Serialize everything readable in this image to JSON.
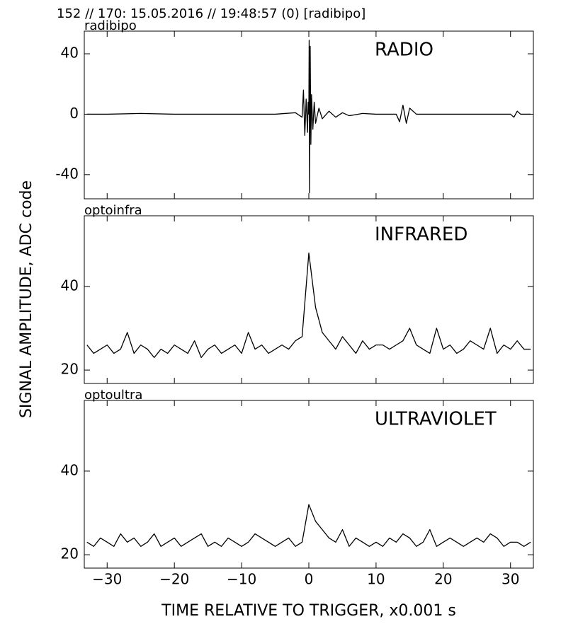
{
  "title": "152 // 170:   15.05.2016 // 19:48:57 (0)  [radibipo]",
  "ylabel": "SIGNAL AMPLITUDE,  ADC code",
  "xlabel": "TIME RELATIVE TO TRIGGER,   x0.001 s",
  "chart_data": [
    {
      "type": "line",
      "label": "radibipo",
      "annotation": "RADIO",
      "color": "#000000",
      "x": [
        -33,
        -30,
        -25,
        -20,
        -15,
        -10,
        -5,
        -2,
        -1,
        -0.8,
        -0.6,
        -0.4,
        -0.2,
        -0.1,
        0,
        0.05,
        0.1,
        0.2,
        0.3,
        0.4,
        0.6,
        0.8,
        1,
        1.5,
        2,
        3,
        4,
        5,
        6,
        8,
        10,
        12,
        13,
        13.5,
        14,
        14.5,
        15,
        16,
        18,
        20,
        25,
        30,
        30.5,
        31,
        31.5,
        33
      ],
      "values": [
        0,
        0,
        0.5,
        0,
        0,
        0,
        0,
        1,
        -2,
        16,
        -14,
        10,
        -12,
        8,
        0,
        49,
        -52,
        45,
        -20,
        13,
        -10,
        8,
        -6,
        4,
        -3,
        2,
        -2,
        1,
        -1,
        0.5,
        0,
        0,
        0,
        -5,
        6,
        -6,
        4,
        0,
        0,
        0,
        0,
        0,
        -2,
        2,
        0,
        0
      ],
      "xlim": [
        -33.4,
        33.4
      ],
      "xticks": [
        {
          "value": -30,
          "label": "−30"
        },
        {
          "value": -20,
          "label": "−20"
        },
        {
          "value": -10,
          "label": "−10"
        },
        0,
        10,
        20,
        30
      ],
      "ylim": [
        -56,
        55
      ],
      "yticks": [
        -40,
        0,
        40
      ]
    },
    {
      "type": "line",
      "label": "optoinfra",
      "annotation": "INFRARED",
      "color": "#000000",
      "x": [
        -33,
        -32,
        -31,
        -30,
        -29,
        -28,
        -27,
        -26,
        -25,
        -24,
        -23,
        -22,
        -21,
        -20,
        -19,
        -18,
        -17,
        -16,
        -15,
        -14,
        -13,
        -12,
        -11,
        -10,
        -9,
        -8,
        -7,
        -6,
        -5,
        -4,
        -3,
        -2,
        -1,
        0,
        1,
        2,
        3,
        4,
        5,
        6,
        7,
        8,
        9,
        10,
        11,
        12,
        13,
        14,
        15,
        16,
        17,
        18,
        19,
        20,
        21,
        22,
        23,
        24,
        25,
        26,
        27,
        28,
        29,
        30,
        31,
        32,
        33
      ],
      "values": [
        26,
        24,
        25,
        26,
        24,
        25,
        29,
        24,
        26,
        25,
        23,
        25,
        24,
        26,
        25,
        24,
        27,
        23,
        25,
        26,
        24,
        25,
        26,
        24,
        29,
        25,
        26,
        24,
        25,
        26,
        25,
        27,
        28,
        48,
        35,
        29,
        27,
        25,
        28,
        26,
        24,
        27,
        25,
        26,
        26,
        25,
        26,
        27,
        30,
        26,
        25,
        24,
        30,
        25,
        26,
        24,
        25,
        27,
        26,
        25,
        30,
        24,
        26,
        25,
        27,
        25,
        25
      ],
      "xlim": [
        -33.4,
        33.4
      ],
      "xticks": [
        {
          "value": -30,
          "label": "−30"
        },
        {
          "value": -20,
          "label": "−20"
        },
        {
          "value": -10,
          "label": "−10"
        },
        0,
        10,
        20,
        30
      ],
      "ylim": [
        16.8,
        56.9
      ],
      "yticks": [
        20,
        40
      ]
    },
    {
      "type": "line",
      "label": "optoultra",
      "annotation": "ULTRAVIOLET",
      "color": "#000000",
      "x": [
        -33,
        -32,
        -31,
        -30,
        -29,
        -28,
        -27,
        -26,
        -25,
        -24,
        -23,
        -22,
        -21,
        -20,
        -19,
        -18,
        -17,
        -16,
        -15,
        -14,
        -13,
        -12,
        -11,
        -10,
        -9,
        -8,
        -7,
        -6,
        -5,
        -4,
        -3,
        -2,
        -1,
        0,
        1,
        2,
        3,
        4,
        5,
        6,
        7,
        8,
        9,
        10,
        11,
        12,
        13,
        14,
        15,
        16,
        17,
        18,
        19,
        20,
        21,
        22,
        23,
        24,
        25,
        26,
        27,
        28,
        29,
        30,
        31,
        32,
        33
      ],
      "values": [
        23,
        22,
        24,
        23,
        22,
        25,
        23,
        24,
        22,
        23,
        25,
        22,
        23,
        24,
        22,
        23,
        24,
        25,
        22,
        23,
        22,
        24,
        23,
        22,
        23,
        25,
        24,
        23,
        22,
        23,
        24,
        22,
        23,
        32,
        28,
        26,
        24,
        23,
        26,
        22,
        24,
        23,
        22,
        23,
        22,
        24,
        23,
        25,
        24,
        22,
        23,
        26,
        22,
        23,
        24,
        23,
        22,
        23,
        24,
        23,
        25,
        24,
        22,
        23,
        23,
        22,
        23
      ],
      "xlim": [
        -33.4,
        33.4
      ],
      "xticks": [
        {
          "value": -30,
          "label": "−30"
        },
        {
          "value": -20,
          "label": "−20"
        },
        {
          "value": -10,
          "label": "−10"
        },
        0,
        10,
        20,
        30
      ],
      "ylim": [
        16.8,
        56.9
      ],
      "yticks": [
        20,
        40
      ]
    }
  ]
}
